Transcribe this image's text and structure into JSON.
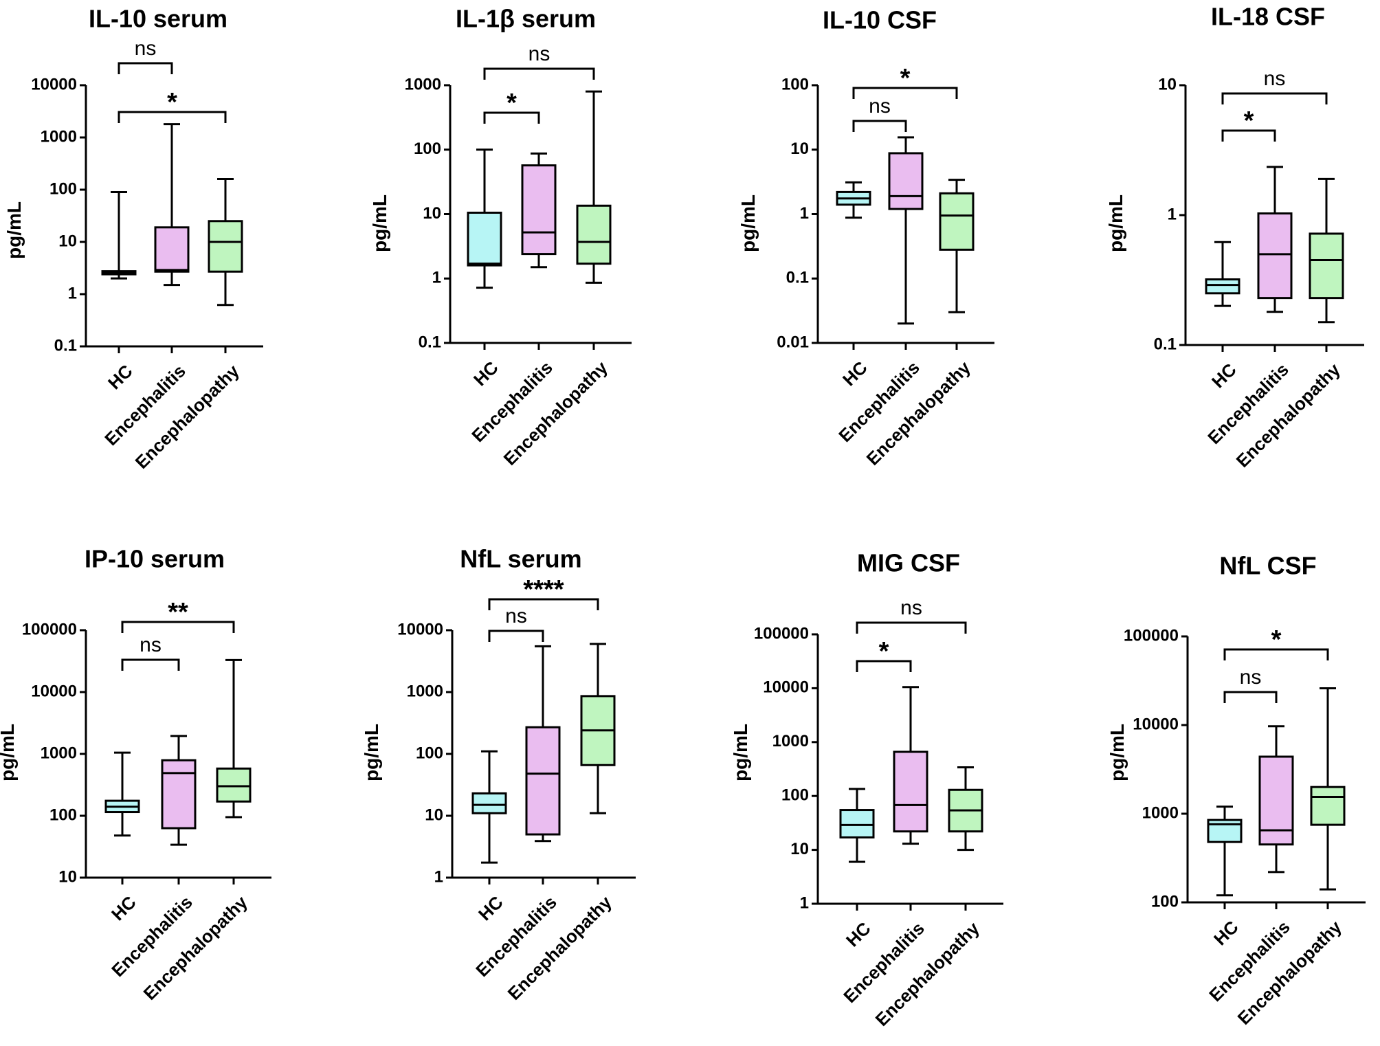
{
  "colors": {
    "HC": "#b7f5f5",
    "Encephalitis": "#eabdf0",
    "Encephalopathy": "#bff5bf",
    "line": "#000000"
  },
  "chart_data": [
    {
      "type": "box",
      "title": "IL-10 serum",
      "ylabel": "pg/mL",
      "scale": "log",
      "ylim": [
        0.1,
        10000
      ],
      "ticks": [
        "0.1",
        "1",
        "10",
        "100",
        "1000",
        "10000"
      ],
      "categories": [
        "HC",
        "Encephalitis",
        "Encephalopathy"
      ],
      "boxes": [
        {
          "min": 2.0,
          "q1": 2.4,
          "median": 2.55,
          "q3": 2.75,
          "max": 90
        },
        {
          "min": 1.5,
          "q1": 2.7,
          "median": 2.9,
          "q3": 19,
          "max": 1800
        },
        {
          "min": 0.62,
          "q1": 2.7,
          "median": 10,
          "q3": 25,
          "max": 160
        }
      ],
      "comparisons": [
        {
          "from": 0,
          "to": 1,
          "label": "ns"
        },
        {
          "from": 0,
          "to": 2,
          "label": "*"
        }
      ]
    },
    {
      "type": "box",
      "title": "IL-1β serum",
      "ylabel": "pg/mL",
      "scale": "log",
      "ylim": [
        0.1,
        1000
      ],
      "ticks": [
        "0.1",
        "1",
        "10",
        "100",
        "1000"
      ],
      "categories": [
        "HC",
        "Encephalitis",
        "Encephalopathy"
      ],
      "boxes": [
        {
          "min": 0.72,
          "q1": 1.6,
          "median": 1.7,
          "q3": 10.5,
          "max": 100
        },
        {
          "min": 1.5,
          "q1": 2.4,
          "median": 5.2,
          "q3": 57,
          "max": 87
        },
        {
          "min": 0.86,
          "q1": 1.7,
          "median": 3.7,
          "q3": 13.5,
          "max": 800
        }
      ],
      "comparisons": [
        {
          "from": 0,
          "to": 1,
          "label": "*"
        },
        {
          "from": 0,
          "to": 2,
          "label": "ns"
        }
      ]
    },
    {
      "type": "box",
      "title": "IL-10 CSF",
      "ylabel": "pg/mL",
      "scale": "log",
      "ylim": [
        0.01,
        100
      ],
      "ticks": [
        "0.01",
        "0.1",
        "1",
        "10",
        "100"
      ],
      "categories": [
        "HC",
        "Encephalitis",
        "Encephalopathy"
      ],
      "boxes": [
        {
          "min": 0.88,
          "q1": 1.4,
          "median": 1.75,
          "q3": 2.2,
          "max": 3.1
        },
        {
          "min": 0.02,
          "q1": 1.2,
          "median": 1.9,
          "q3": 8.8,
          "max": 15.5
        },
        {
          "min": 0.03,
          "q1": 0.28,
          "median": 0.95,
          "q3": 2.1,
          "max": 3.4
        }
      ],
      "comparisons": [
        {
          "from": 0,
          "to": 1,
          "label": "ns"
        },
        {
          "from": 0,
          "to": 2,
          "label": "*"
        }
      ]
    },
    {
      "type": "box",
      "title": "IL-18 CSF",
      "ylabel": "pg/mL",
      "scale": "log",
      "ylim": [
        0.1,
        10
      ],
      "ticks": [
        "0.1",
        "1",
        "10"
      ],
      "categories": [
        "HC",
        "Encephalitis",
        "Encephalopathy"
      ],
      "boxes": [
        {
          "min": 0.2,
          "q1": 0.25,
          "median": 0.29,
          "q3": 0.32,
          "max": 0.62
        },
        {
          "min": 0.18,
          "q1": 0.23,
          "median": 0.5,
          "q3": 1.03,
          "max": 2.35
        },
        {
          "min": 0.15,
          "q1": 0.23,
          "median": 0.45,
          "q3": 0.72,
          "max": 1.9
        }
      ],
      "comparisons": [
        {
          "from": 0,
          "to": 1,
          "label": "*"
        },
        {
          "from": 0,
          "to": 2,
          "label": "ns"
        }
      ]
    },
    {
      "type": "box",
      "title": "IP-10 serum",
      "ylabel": "pg/mL",
      "scale": "log",
      "ylim": [
        10,
        100000
      ],
      "ticks": [
        "10",
        "100",
        "1000",
        "10000",
        "100000"
      ],
      "categories": [
        "HC",
        "Encephalitis",
        "Encephalopathy"
      ],
      "boxes": [
        {
          "min": 48,
          "q1": 115,
          "median": 140,
          "q3": 175,
          "max": 1050
        },
        {
          "min": 34,
          "q1": 63,
          "median": 490,
          "q3": 790,
          "max": 1950
        },
        {
          "min": 95,
          "q1": 170,
          "median": 300,
          "q3": 580,
          "max": 33000
        }
      ],
      "comparisons": [
        {
          "from": 0,
          "to": 1,
          "label": "ns"
        },
        {
          "from": 0,
          "to": 2,
          "label": "**"
        }
      ]
    },
    {
      "type": "box",
      "title": "NfL serum",
      "ylabel": "pg/mL",
      "scale": "log",
      "ylim": [
        1,
        10000
      ],
      "ticks": [
        "1",
        "10",
        "100",
        "1000",
        "10000"
      ],
      "categories": [
        "HC",
        "Encephalitis",
        "Encephalopathy"
      ],
      "boxes": [
        {
          "min": 1.75,
          "q1": 11,
          "median": 15,
          "q3": 23,
          "max": 110
        },
        {
          "min": 3.9,
          "q1": 5,
          "median": 48,
          "q3": 270,
          "max": 5500
        },
        {
          "min": 11,
          "q1": 66,
          "median": 240,
          "q3": 860,
          "max": 6000
        }
      ],
      "comparisons": [
        {
          "from": 0,
          "to": 1,
          "label": "ns"
        },
        {
          "from": 0,
          "to": 2,
          "label": "****"
        }
      ]
    },
    {
      "type": "box",
      "title": "MIG CSF",
      "ylabel": "pg/mL",
      "scale": "log",
      "ylim": [
        1,
        100000
      ],
      "ticks": [
        "1",
        "10",
        "100",
        "1000",
        "10000",
        "100000"
      ],
      "categories": [
        "HC",
        "Encephalitis",
        "Encephalopathy"
      ],
      "boxes": [
        {
          "min": 6,
          "q1": 17,
          "median": 29,
          "q3": 55,
          "max": 135
        },
        {
          "min": 13,
          "q1": 22,
          "median": 68,
          "q3": 660,
          "max": 10500
        },
        {
          "min": 10,
          "q1": 22,
          "median": 54,
          "q3": 130,
          "max": 340
        }
      ],
      "comparisons": [
        {
          "from": 0,
          "to": 1,
          "label": "*"
        },
        {
          "from": 0,
          "to": 2,
          "label": "ns"
        }
      ]
    },
    {
      "type": "box",
      "title": "NfL CSF",
      "ylabel": "pg/mL",
      "scale": "log",
      "ylim": [
        100,
        100000
      ],
      "ticks": [
        "100",
        "1000",
        "10000",
        "100000"
      ],
      "categories": [
        "HC",
        "Encephalitis",
        "Encephalopathy"
      ],
      "boxes": [
        {
          "min": 120,
          "q1": 480,
          "median": 760,
          "q3": 850,
          "max": 1200
        },
        {
          "min": 220,
          "q1": 450,
          "median": 650,
          "q3": 4400,
          "max": 9700
        },
        {
          "min": 140,
          "q1": 750,
          "median": 1550,
          "q3": 2000,
          "max": 26000
        }
      ],
      "comparisons": [
        {
          "from": 0,
          "to": 1,
          "label": "ns"
        },
        {
          "from": 0,
          "to": 2,
          "label": "*"
        }
      ]
    }
  ]
}
